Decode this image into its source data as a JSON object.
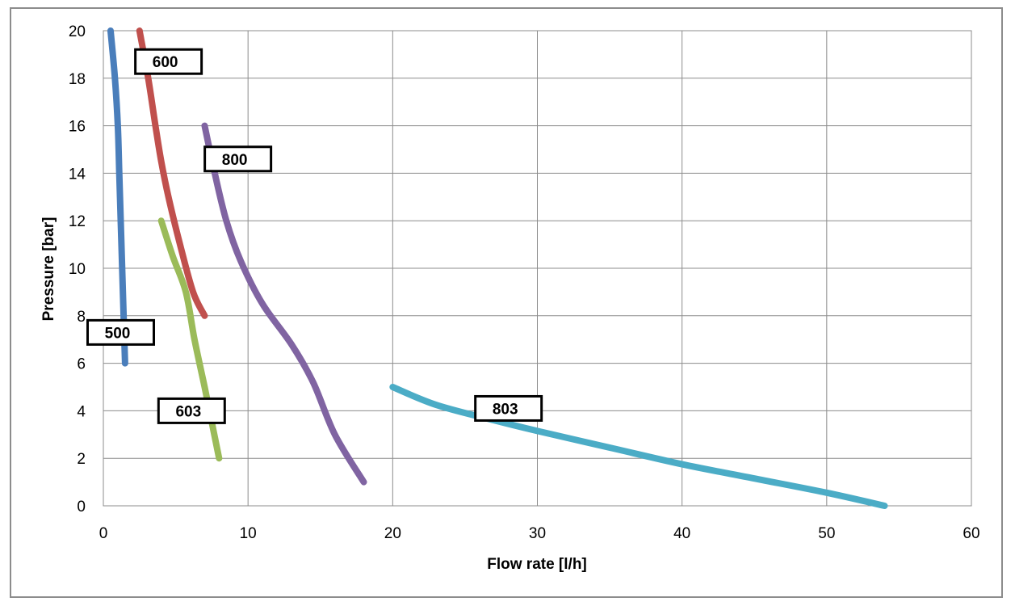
{
  "chart_data": {
    "type": "line",
    "title": "",
    "xlabel": "Flow rate [l/h]",
    "ylabel": "Pressure [bar]",
    "xlim": [
      0,
      60
    ],
    "ylim": [
      0,
      20
    ],
    "xticks": [
      0,
      10,
      20,
      30,
      40,
      50,
      60
    ],
    "yticks": [
      0,
      2,
      4,
      6,
      8,
      10,
      12,
      14,
      16,
      18,
      20
    ],
    "grid": true,
    "legend": "none",
    "series": [
      {
        "name": "500",
        "color": "#4a7ebb",
        "label_at": [
          1.2,
          7.3
        ],
        "points": [
          [
            0.5,
            20
          ],
          [
            0.8,
            18
          ],
          [
            1.0,
            16
          ],
          [
            1.1,
            14
          ],
          [
            1.2,
            12
          ],
          [
            1.3,
            10
          ],
          [
            1.4,
            8
          ],
          [
            1.5,
            6
          ]
        ]
      },
      {
        "name": "600",
        "color": "#c0504d",
        "label_at": [
          4.5,
          18.7
        ],
        "points": [
          [
            2.5,
            20
          ],
          [
            3.1,
            18
          ],
          [
            3.6,
            16
          ],
          [
            4.0,
            14.5
          ],
          [
            4.5,
            13
          ],
          [
            5.3,
            11
          ],
          [
            6.2,
            9
          ],
          [
            7.0,
            8
          ]
        ]
      },
      {
        "name": "603",
        "color": "#9bbb59",
        "label_at": [
          6.1,
          4.0
        ],
        "points": [
          [
            4.0,
            12
          ],
          [
            4.8,
            10.5
          ],
          [
            5.7,
            9
          ],
          [
            6.3,
            7
          ],
          [
            7.0,
            5
          ],
          [
            7.5,
            3.5
          ],
          [
            8.0,
            2
          ]
        ]
      },
      {
        "name": "800",
        "color": "#8064a2",
        "label_at": [
          9.3,
          14.6
        ],
        "points": [
          [
            7.0,
            16
          ],
          [
            7.7,
            14
          ],
          [
            8.5,
            12
          ],
          [
            9.5,
            10.3
          ],
          [
            11.0,
            8.5
          ],
          [
            13.0,
            6.8
          ],
          [
            14.5,
            5.2
          ],
          [
            16.0,
            3.0
          ],
          [
            18.0,
            1.0
          ]
        ]
      },
      {
        "name": "803",
        "color": "#4bacc6",
        "label_at": [
          28.0,
          4.1
        ],
        "points": [
          [
            20,
            5
          ],
          [
            23,
            4.25
          ],
          [
            27,
            3.6
          ],
          [
            30,
            3.15
          ],
          [
            35,
            2.45
          ],
          [
            40,
            1.75
          ],
          [
            45,
            1.15
          ],
          [
            50,
            0.55
          ],
          [
            54,
            0
          ]
        ]
      }
    ]
  }
}
